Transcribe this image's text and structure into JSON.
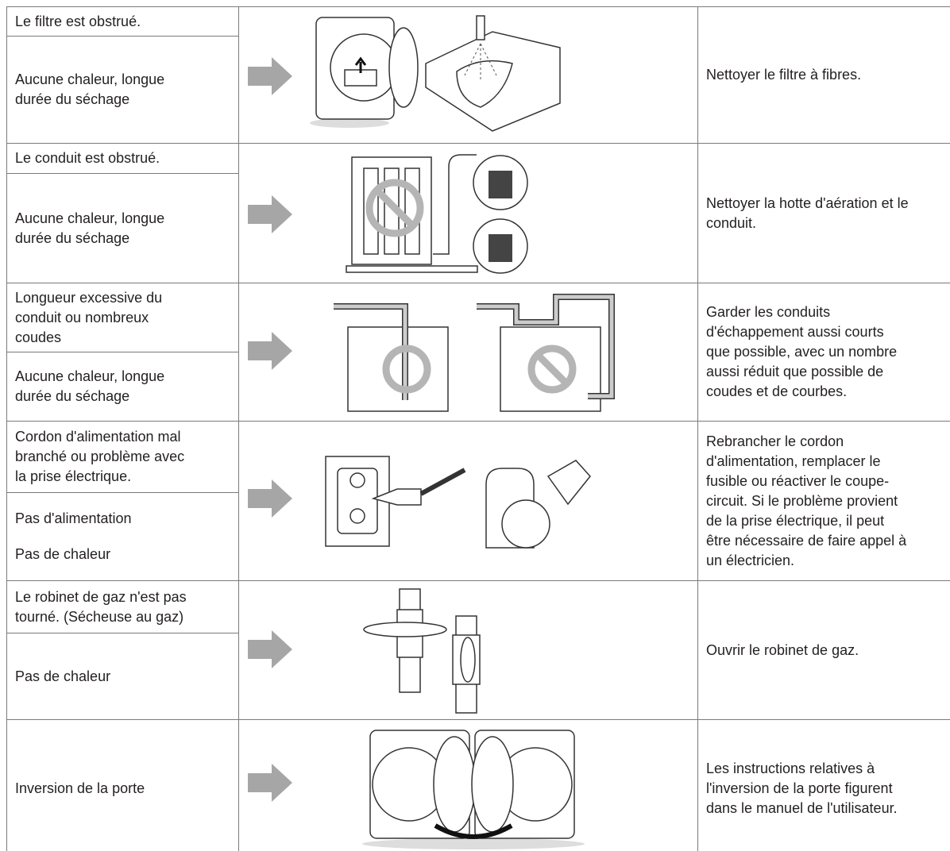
{
  "rows": [
    {
      "symptoms": [
        [
          "Le filtre est obstrué."
        ],
        [
          "Aucune chaleur, longue",
          "durée du séchage"
        ]
      ],
      "solution": [
        "Nettoyer le filtre à fibres."
      ]
    },
    {
      "symptoms": [
        [
          "Le conduit est obstrué."
        ],
        [
          "Aucune chaleur, longue",
          "durée du séchage"
        ]
      ],
      "solution": [
        "Nettoyer la hotte d'aération et le",
        "conduit."
      ]
    },
    {
      "symptoms": [
        [
          "Longueur excessive du",
          "conduit ou nombreux",
          "coudes"
        ],
        [
          "Aucune chaleur, longue",
          "durée du séchage"
        ]
      ],
      "solution": [
        "Garder les conduits",
        "d'échappement aussi courts",
        "que possible, avec un nombre",
        "aussi réduit que possible de",
        "coudes et de courbes."
      ]
    },
    {
      "symptoms": [
        [
          "Cordon d'alimentation mal",
          "branché ou problème avec",
          "la prise électrique."
        ],
        [
          "Pas d'alimentation",
          "Pas de chaleur"
        ]
      ],
      "solution": [
        "Rebrancher le cordon",
        "d'alimentation, remplacer le",
        "fusible ou réactiver le coupe-",
        "circuit. Si le problème provient",
        "de la prise électrique, il peut",
        "être nécessaire de faire appel à",
        "un électricien."
      ]
    },
    {
      "symptoms": [
        [
          "Le robinet de gaz n'est pas",
          "tourné. (Sécheuse au gaz)"
        ],
        [
          "Pas de chaleur"
        ]
      ],
      "solution": [
        "Ouvrir le robinet de gaz."
      ]
    },
    {
      "symptoms": [
        [
          "Inversion de la porte"
        ]
      ],
      "solution": [
        "Les instructions relatives à",
        "l'inversion de la porte figurent",
        "dans le manuel de l'utilisateur."
      ]
    }
  ]
}
